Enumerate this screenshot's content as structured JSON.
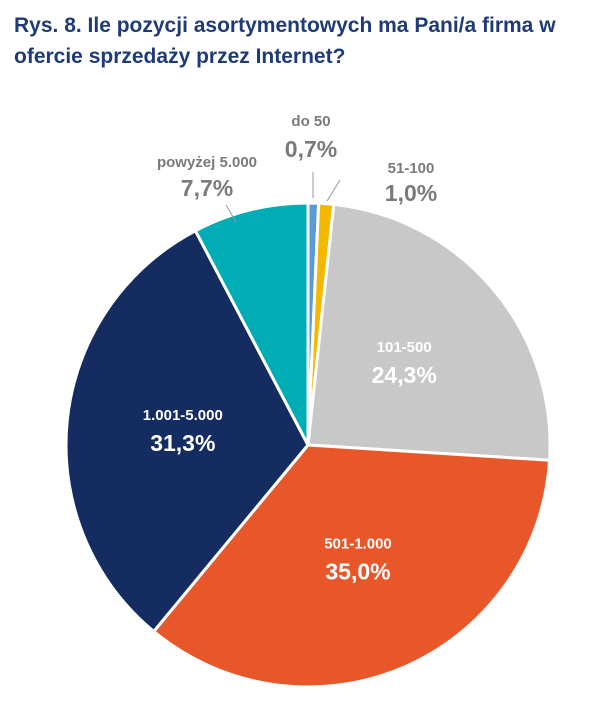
{
  "chart_data": {
    "type": "pie",
    "title": "Rys. 8. Ile pozycji asortymentowych ma Pani/a firma w ofercie sprzedaży przez Internet?",
    "slices": [
      {
        "label": "do 50",
        "value": 0.7,
        "value_label": "0,7%",
        "color": "#5b9bd5",
        "label_position": "outside"
      },
      {
        "label": "51-100",
        "value": 1.0,
        "value_label": "1,0%",
        "color": "#f5b800",
        "label_position": "outside"
      },
      {
        "label": "101-500",
        "value": 24.3,
        "value_label": "24,3%",
        "color": "#c8c8c8",
        "label_position": "inside"
      },
      {
        "label": "501-1.000",
        "value": 35.0,
        "value_label": "35,0%",
        "color": "#e8572a",
        "label_position": "inside"
      },
      {
        "label": "1.001-5.000",
        "value": 31.3,
        "value_label": "31,3%",
        "color": "#142c5f",
        "label_position": "inside"
      },
      {
        "label": "powyżej 5.000",
        "value": 7.7,
        "value_label": "7,7%",
        "color": "#00adb5",
        "label_position": "outside"
      }
    ],
    "start_angle": "12 o'clock",
    "direction": "clockwise",
    "unit": "%"
  }
}
